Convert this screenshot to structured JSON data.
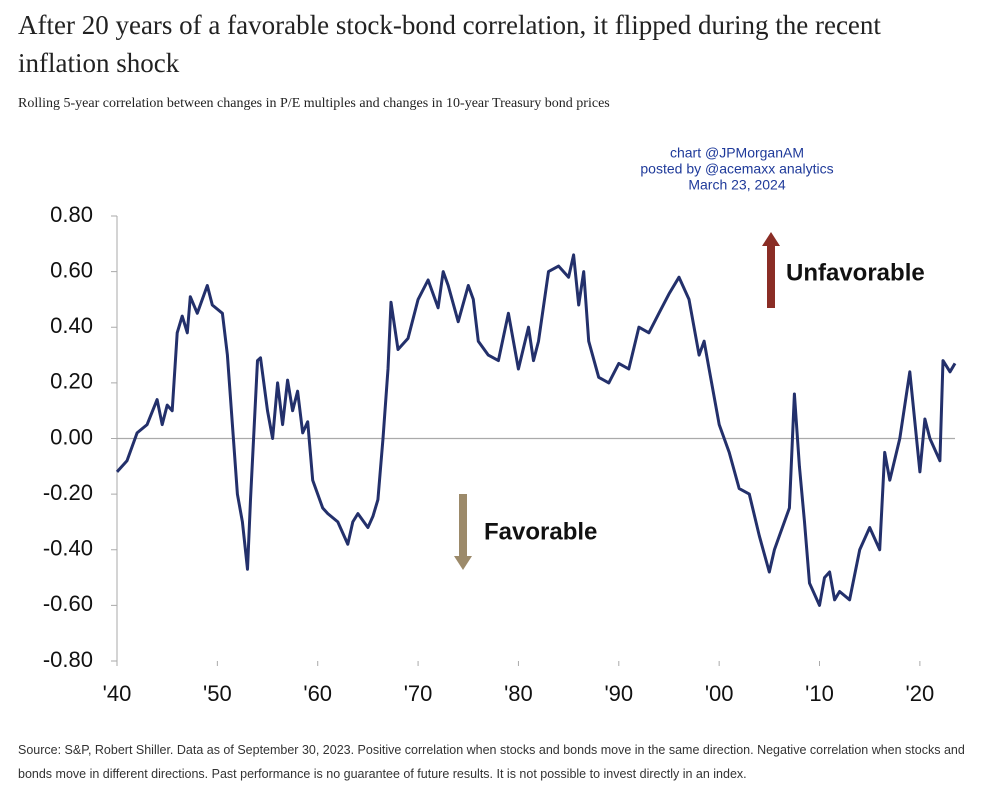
{
  "chart_data": {
    "type": "line",
    "title": "After 20 years of a favorable stock-bond correlation, it flipped during the recent inflation shock",
    "subtitle": "Rolling 5-year correlation between changes in P/E multiples and changes in 10-year Treasury bond prices",
    "annotations": [
      "chart @JPMorganAM",
      "posted by @acemaxx analytics",
      "March 23, 2024"
    ],
    "unfavorable_label": "Unfavorable",
    "favorable_label": "Favorable",
    "source": "Source: S&P, Robert Shiller. Data as of September 30, 2023. Positive correlation when stocks and bonds move in the same direction. Negative correlation when stocks and bonds move in different directions. Past performance is no guarantee of future results. It is not possible to invest directly in an index.",
    "color": "#23306b",
    "x": [
      1940,
      1941,
      1942,
      1943,
      1944,
      1944.5,
      1945,
      1945.5,
      1946,
      1946.5,
      1947,
      1947.3,
      1948,
      1949,
      1949.5,
      1950.5,
      1951,
      1951.5,
      1952,
      1952.5,
      1953,
      1953.3,
      1954,
      1954.3,
      1955,
      1955.5,
      1956,
      1956.5,
      1957,
      1957.5,
      1958,
      1958.5,
      1959,
      1959.5,
      1960,
      1960.5,
      1961,
      1962,
      1963,
      1963.5,
      1964,
      1965,
      1965.5,
      1966,
      1966.5,
      1967,
      1967.3,
      1968,
      1969,
      1970,
      1971,
      1972,
      1972.5,
      1973,
      1974,
      1975,
      1975.5,
      1976,
      1977,
      1978,
      1979,
      1980,
      1981,
      1981.5,
      1982,
      1983,
      1984,
      1985,
      1985.5,
      1986,
      1986.5,
      1987,
      1988,
      1989,
      1990,
      1991,
      1992,
      1993,
      1994,
      1995,
      1996,
      1997,
      1998,
      1998.5,
      1999,
      2000,
      2001,
      2002,
      2003,
      2004,
      2005,
      2005.5,
      2006,
      2007,
      2007.5,
      2008,
      2008.5,
      2009,
      2010,
      2010.5,
      2011,
      2011.5,
      2012,
      2013,
      2014,
      2015,
      2016,
      2016.5,
      2017,
      2018,
      2019,
      2020,
      2020.5,
      2021,
      2022,
      2022.3,
      2023,
      2023.5
    ],
    "values": [
      -0.12,
      -0.08,
      0.02,
      0.05,
      0.14,
      0.05,
      0.12,
      0.1,
      0.38,
      0.44,
      0.38,
      0.51,
      0.45,
      0.55,
      0.48,
      0.45,
      0.3,
      0.05,
      -0.2,
      -0.3,
      -0.47,
      -0.22,
      0.28,
      0.29,
      0.1,
      0.0,
      0.2,
      0.05,
      0.21,
      0.1,
      0.17,
      0.02,
      0.06,
      -0.15,
      -0.2,
      -0.25,
      -0.27,
      -0.3,
      -0.38,
      -0.3,
      -0.27,
      -0.32,
      -0.28,
      -0.22,
      0.0,
      0.25,
      0.49,
      0.32,
      0.36,
      0.5,
      0.57,
      0.47,
      0.6,
      0.55,
      0.42,
      0.55,
      0.5,
      0.35,
      0.3,
      0.28,
      0.45,
      0.25,
      0.4,
      0.28,
      0.35,
      0.6,
      0.62,
      0.58,
      0.66,
      0.48,
      0.6,
      0.35,
      0.22,
      0.2,
      0.27,
      0.25,
      0.4,
      0.38,
      0.45,
      0.52,
      0.58,
      0.5,
      0.3,
      0.35,
      0.25,
      0.05,
      -0.05,
      -0.18,
      -0.2,
      -0.35,
      -0.48,
      -0.4,
      -0.35,
      -0.25,
      0.16,
      -0.1,
      -0.3,
      -0.52,
      -0.6,
      -0.5,
      -0.48,
      -0.58,
      -0.55,
      -0.58,
      -0.4,
      -0.32,
      -0.4,
      -0.05,
      -0.15,
      0.0,
      0.24,
      -0.12,
      0.07,
      0.0,
      -0.08,
      0.28,
      0.24,
      0.27
    ],
    "xlim": [
      1940,
      2023.5
    ],
    "xticks": [
      {
        "value": 1940,
        "label": "'40"
      },
      {
        "value": 1950,
        "label": "'50"
      },
      {
        "value": 1960,
        "label": "'60"
      },
      {
        "value": 1970,
        "label": "'70"
      },
      {
        "value": 1980,
        "label": "'80"
      },
      {
        "value": 1990,
        "label": "'90"
      },
      {
        "value": 2000,
        "label": "'00"
      },
      {
        "value": 2010,
        "label": "'10"
      },
      {
        "value": 2020,
        "label": "'20"
      }
    ],
    "ylim": [
      -0.8,
      0.8
    ],
    "yticks": [
      {
        "value": 0.8,
        "label": "0.80"
      },
      {
        "value": 0.6,
        "label": "0.60"
      },
      {
        "value": 0.4,
        "label": "0.40"
      },
      {
        "value": 0.2,
        "label": "0.20"
      },
      {
        "value": 0,
        "label": "0.00"
      },
      {
        "value": -0.2,
        "label": "-0.20"
      },
      {
        "value": -0.4,
        "label": "-0.40"
      },
      {
        "value": -0.6,
        "label": "-0.60"
      },
      {
        "value": -0.8,
        "label": "-0.80"
      }
    ]
  }
}
